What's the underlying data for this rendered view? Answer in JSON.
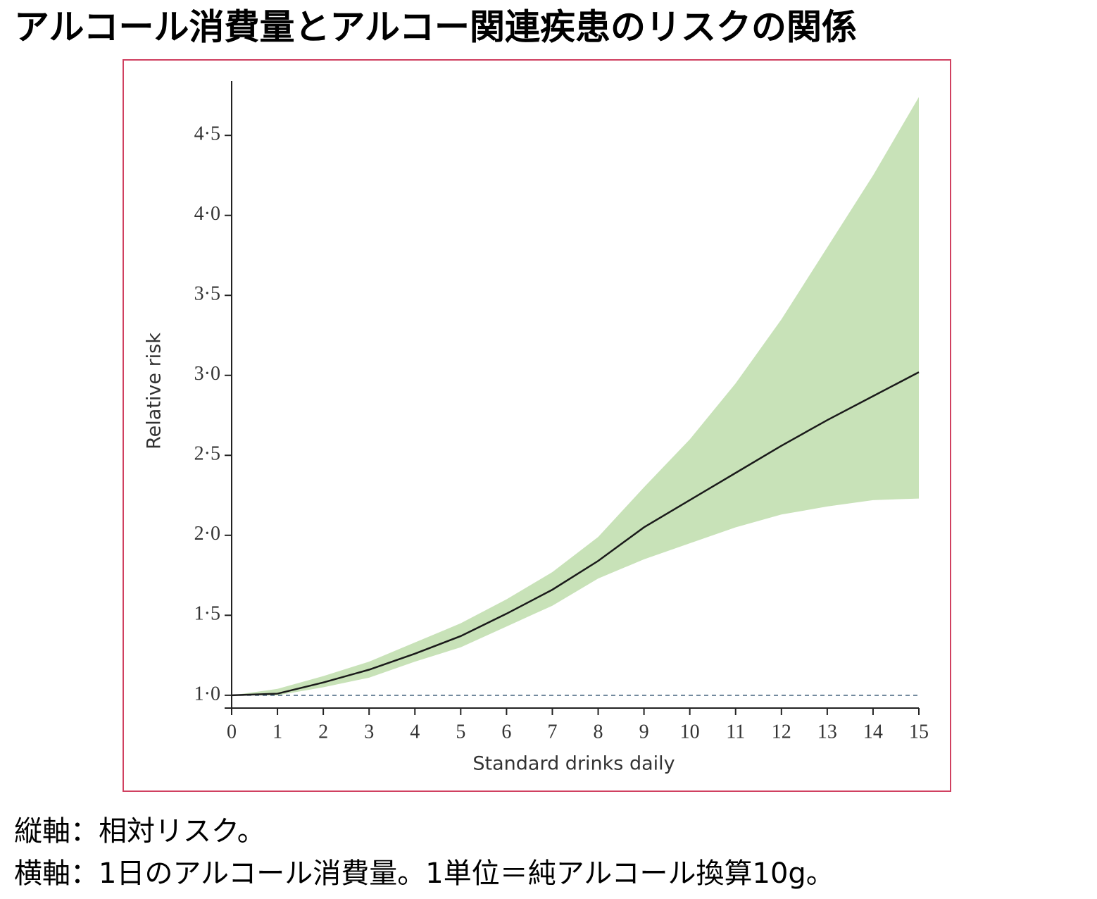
{
  "title": "アルコール消費量とアルコー関連疾患のリスクの関係",
  "chart_data": {
    "type": "line_band",
    "y_label": "Relative risk",
    "x_label": "Standard drinks daily",
    "x": [
      0,
      1,
      2,
      3,
      4,
      5,
      6,
      7,
      8,
      9,
      10,
      11,
      12,
      13,
      14,
      15
    ],
    "values": [
      1.0,
      1.01,
      1.08,
      1.16,
      1.26,
      1.37,
      1.51,
      1.66,
      1.84,
      2.05,
      2.22,
      2.39,
      2.56,
      2.72,
      2.87,
      3.02
    ],
    "ci_upper": [
      1.0,
      1.04,
      1.12,
      1.21,
      1.33,
      1.45,
      1.6,
      1.77,
      1.99,
      2.3,
      2.6,
      2.95,
      3.35,
      3.8,
      4.25,
      4.74
    ],
    "ci_lower": [
      1.0,
      1.0,
      1.05,
      1.11,
      1.21,
      1.3,
      1.43,
      1.56,
      1.73,
      1.85,
      1.95,
      2.05,
      2.13,
      2.18,
      2.22,
      2.23
    ],
    "color": "#1a1a1a",
    "band_color": "#c8e2b8",
    "reference_line": 1.0,
    "reference_color": "#3a5a78",
    "xlim": [
      0,
      15
    ],
    "xticks": [
      0,
      1,
      2,
      3,
      4,
      5,
      6,
      7,
      8,
      9,
      10,
      11,
      12,
      13,
      14,
      15
    ],
    "ylim": [
      0.92,
      4.84
    ],
    "yticks": [
      {
        "value": 1.0,
        "label": "1·0"
      },
      {
        "value": 1.5,
        "label": "1·5"
      },
      {
        "value": 2.0,
        "label": "2·0"
      },
      {
        "value": 2.5,
        "label": "2·5"
      },
      {
        "value": 3.0,
        "label": "3·0"
      },
      {
        "value": 3.5,
        "label": "3·5"
      },
      {
        "value": 4.0,
        "label": "4·0"
      },
      {
        "value": 4.5,
        "label": "4·5"
      }
    ]
  },
  "notes": [
    "縦軸：相対リスク。",
    "横軸：1日のアルコール消費量。1単位＝純アルコール換算10g。"
  ]
}
